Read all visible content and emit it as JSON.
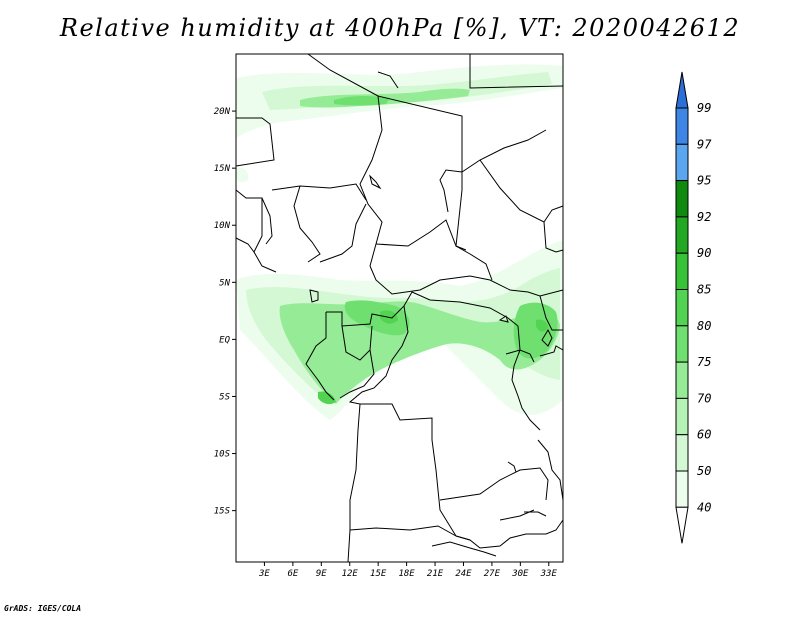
{
  "title": "Relative humidity at 400hPa [%], VT: 2020042612",
  "credit": "GrADS: IGES/COLA",
  "map": {
    "lat_labels": [
      "20N",
      "15N",
      "10N",
      "5N",
      "EQ",
      "5S",
      "10S",
      "15S"
    ],
    "lat_values": [
      20,
      15,
      10,
      5,
      0,
      -5,
      -10,
      -15
    ],
    "lon_labels": [
      "3E",
      "6E",
      "9E",
      "12E",
      "15E",
      "18E",
      "21E",
      "24E",
      "27E",
      "30E",
      "33E"
    ],
    "lon_values": [
      3,
      6,
      9,
      12,
      15,
      18,
      21,
      24,
      27,
      30,
      33
    ],
    "lon_range": [
      0,
      34.5
    ],
    "lat_range": [
      -19.5,
      25
    ]
  },
  "colorbar": {
    "labels": [
      "99",
      "97",
      "95",
      "92",
      "90",
      "85",
      "80",
      "75",
      "70",
      "60",
      "50",
      "40"
    ],
    "colors": [
      "#2a6fd8",
      "#3e86e6",
      "#5aa6f0",
      "#0f8a0f",
      "#23a823",
      "#38c238",
      "#52d452",
      "#6fe06f",
      "#96eb96",
      "#b6f2b6",
      "#d3f8d3",
      "#edfded"
    ]
  }
}
